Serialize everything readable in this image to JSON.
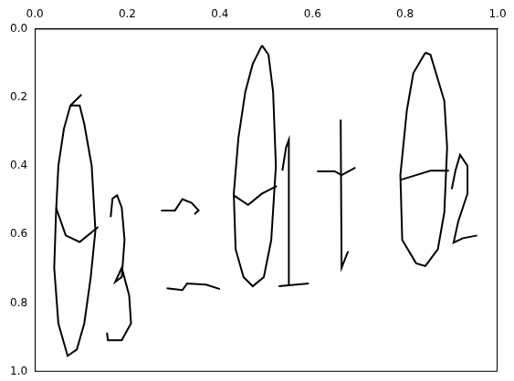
{
  "chart_data": {
    "type": "line",
    "color": "#000000",
    "grid": false,
    "line_style": "solid",
    "xlim": [
      0.0,
      1.0
    ],
    "xticks": [
      {
        "value": 0.0,
        "label": "0.0"
      },
      {
        "value": 0.2,
        "label": "0.2"
      },
      {
        "value": 0.4,
        "label": "0.4"
      },
      {
        "value": 0.6,
        "label": "0.6"
      },
      {
        "value": 0.8,
        "label": "0.8"
      },
      {
        "value": 1.0,
        "label": "1.0"
      }
    ],
    "ylim": [
      1.0,
      0.0
    ],
    "yticks": [
      {
        "value": 0.0,
        "label": "0.0"
      },
      {
        "value": 0.2,
        "label": "0.2"
      },
      {
        "value": 0.4,
        "label": "0.4"
      },
      {
        "value": 0.6,
        "label": "0.6"
      },
      {
        "value": 0.8,
        "label": "0.8"
      },
      {
        "value": 1.0,
        "label": "1.0"
      }
    ],
    "series": [
      {
        "x": [
          0.101,
          0.077,
          0.063,
          0.051,
          0.046,
          0.042,
          0.051,
          0.071,
          0.091,
          0.107,
          0.121,
          0.131,
          0.123,
          0.107,
          0.097,
          0.077
        ],
        "values": [
          0.192,
          0.224,
          0.292,
          0.4,
          0.535,
          0.697,
          0.859,
          0.954,
          0.935,
          0.859,
          0.724,
          0.589,
          0.4,
          0.278,
          0.224,
          0.224
        ]
      },
      {
        "x": [
          0.046,
          0.067,
          0.097,
          0.137
        ],
        "values": [
          0.522,
          0.603,
          0.622,
          0.578
        ]
      },
      {
        "x": [
          0.164,
          0.168,
          0.178,
          0.188,
          0.194,
          0.188,
          0.174,
          0.188,
          0.204,
          0.208,
          0.188,
          0.158,
          0.156
        ],
        "values": [
          0.549,
          0.495,
          0.486,
          0.522,
          0.616,
          0.724,
          0.738,
          0.697,
          0.778,
          0.859,
          0.908,
          0.908,
          0.886
        ]
      },
      {
        "x": [
          0.273,
          0.303,
          0.319,
          0.339,
          0.354,
          0.345
        ],
        "values": [
          0.53,
          0.53,
          0.497,
          0.508,
          0.53,
          0.541
        ]
      },
      {
        "x": [
          0.285,
          0.319,
          0.329,
          0.37,
          0.4
        ],
        "values": [
          0.757,
          0.762,
          0.743,
          0.746,
          0.759
        ]
      },
      {
        "x": [
          0.491,
          0.471,
          0.455,
          0.44,
          0.43,
          0.434,
          0.451,
          0.471,
          0.495,
          0.511,
          0.521,
          0.515,
          0.505,
          0.491
        ],
        "values": [
          0.049,
          0.103,
          0.184,
          0.319,
          0.481,
          0.643,
          0.724,
          0.751,
          0.724,
          0.616,
          0.4,
          0.184,
          0.076,
          0.049
        ]
      },
      {
        "x": [
          0.43,
          0.461,
          0.491,
          0.523
        ],
        "values": [
          0.486,
          0.514,
          0.481,
          0.459
        ]
      },
      {
        "x": [
          0.535,
          0.543,
          0.549,
          0.549
        ],
        "values": [
          0.414,
          0.346,
          0.324,
          0.751
        ]
      },
      {
        "x": [
          0.527,
          0.592
        ],
        "values": [
          0.751,
          0.743
        ]
      },
      {
        "x": [
          0.61,
          0.648,
          0.663,
          0.693
        ],
        "values": [
          0.416,
          0.416,
          0.427,
          0.405
        ]
      },
      {
        "x": [
          0.661,
          0.663,
          0.677
        ],
        "values": [
          0.265,
          0.697,
          0.649
        ]
      },
      {
        "x": [
          0.844,
          0.818,
          0.804,
          0.79,
          0.794,
          0.824,
          0.844,
          0.871,
          0.885,
          0.891,
          0.885,
          0.867,
          0.855,
          0.844
        ],
        "values": [
          0.07,
          0.13,
          0.238,
          0.427,
          0.616,
          0.684,
          0.692,
          0.643,
          0.535,
          0.346,
          0.211,
          0.13,
          0.076,
          0.07
        ]
      },
      {
        "x": [
          0.79,
          0.824,
          0.855,
          0.895
        ],
        "values": [
          0.441,
          0.427,
          0.414,
          0.414
        ]
      },
      {
        "x": [
          0.901,
          0.909,
          0.919,
          0.935,
          0.935,
          0.915,
          0.905,
          0.925,
          0.956
        ],
        "values": [
          0.468,
          0.414,
          0.368,
          0.4,
          0.481,
          0.562,
          0.624,
          0.611,
          0.603
        ]
      }
    ]
  }
}
